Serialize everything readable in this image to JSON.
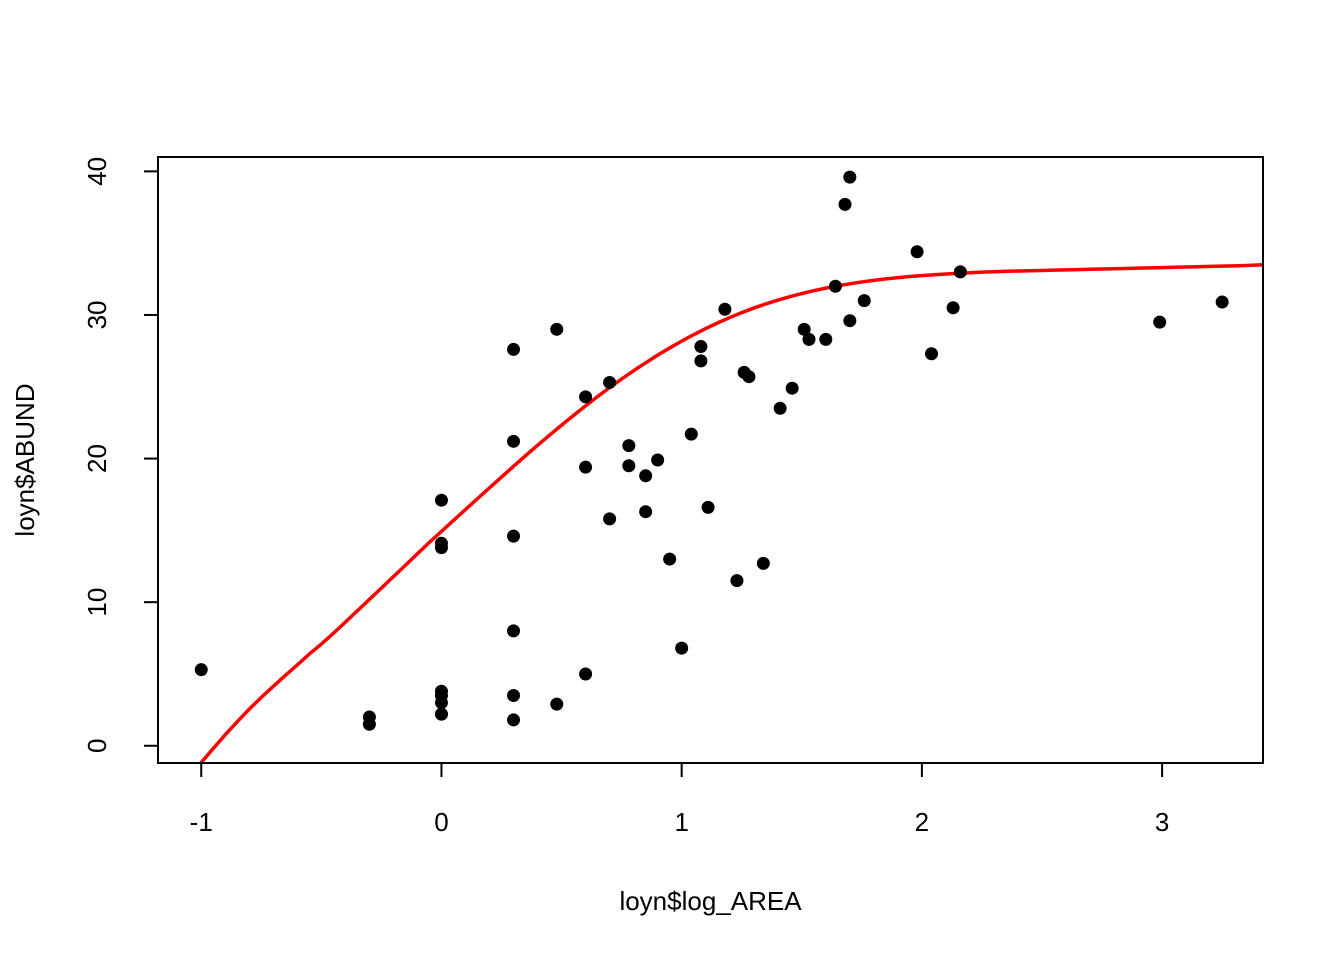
{
  "chart_data": {
    "type": "scatter",
    "title": "",
    "xlabel": "loyn$log_AREA",
    "ylabel": "loyn$ABUND",
    "xlim": [
      -1.18,
      3.42
    ],
    "ylim": [
      -1.2,
      41.0
    ],
    "x_ticks": [
      -1,
      0,
      1,
      2,
      3
    ],
    "x_tick_labels": [
      "-1",
      "0",
      "1",
      "2",
      "3"
    ],
    "y_ticks": [
      0,
      10,
      20,
      30,
      40
    ],
    "y_tick_labels": [
      "0",
      "10",
      "20",
      "30",
      "40"
    ],
    "grid": false,
    "legend": "none",
    "colors": {
      "points": "#000000",
      "curve": "#ff0000",
      "frame": "#000000"
    },
    "series": [
      {
        "type": "scatter",
        "x": [
          -1.0,
          -0.3,
          -0.3,
          0.0,
          0.0,
          0.0,
          0.0,
          0.0,
          0.0,
          0.0,
          0.0,
          0.3,
          0.3,
          0.3,
          0.3,
          0.3,
          0.3,
          0.48,
          0.48,
          0.6,
          0.6,
          0.6,
          0.7,
          0.7,
          0.78,
          0.78,
          0.85,
          0.85,
          0.9,
          0.95,
          1.0,
          1.04,
          1.08,
          1.08,
          1.11,
          1.18,
          1.23,
          1.26,
          1.28,
          1.34,
          1.41,
          1.46,
          1.51,
          1.53,
          1.6,
          1.64,
          1.68,
          1.7,
          1.7,
          1.76,
          1.98,
          2.04,
          2.13,
          2.16,
          2.99,
          3.25
        ],
        "y": [
          5.3,
          2.0,
          1.5,
          17.1,
          14.1,
          13.8,
          3.8,
          3.5,
          3.0,
          2.2,
          2.2,
          27.6,
          21.2,
          14.6,
          8.0,
          3.5,
          1.8,
          29.0,
          2.9,
          24.3,
          19.4,
          5.0,
          25.3,
          15.8,
          20.9,
          19.5,
          18.8,
          16.3,
          19.9,
          13.0,
          6.8,
          21.7,
          27.8,
          26.8,
          16.6,
          30.4,
          11.5,
          26.0,
          25.7,
          12.7,
          23.5,
          24.9,
          29.0,
          28.3,
          28.3,
          32.0,
          37.7,
          39.6,
          29.6,
          31.0,
          34.4,
          27.3,
          30.5,
          33.0,
          29.5,
          30.9
        ]
      },
      {
        "type": "line",
        "x": [
          -1.0,
          -0.95,
          -0.9,
          -0.85,
          -0.8,
          -0.75,
          -0.7,
          -0.65,
          -0.6,
          -0.55,
          -0.5,
          -0.45,
          -0.4,
          -0.35,
          -0.3,
          -0.25,
          -0.2,
          -0.15,
          -0.1,
          -0.05,
          0.0,
          0.05,
          0.1,
          0.15,
          0.2,
          0.25,
          0.3,
          0.35,
          0.4,
          0.45,
          0.5,
          0.55,
          0.6,
          0.65,
          0.7,
          0.75,
          0.8,
          0.85,
          0.9,
          0.95,
          1.0,
          1.05,
          1.1,
          1.15,
          1.2,
          1.25,
          1.3,
          1.35,
          1.4,
          1.45,
          1.5,
          1.55,
          1.6,
          1.65,
          1.7,
          1.75,
          1.8,
          1.85,
          1.9,
          1.95,
          2.0,
          2.05,
          2.1,
          2.15,
          2.2,
          2.25,
          2.3,
          2.35,
          2.4,
          2.45,
          2.5,
          2.55,
          2.6,
          2.65,
          2.7,
          2.75,
          2.8,
          2.85,
          2.9,
          2.95,
          3.0,
          3.05,
          3.1,
          3.15,
          3.2,
          3.25,
          3.3,
          3.35,
          3.42
        ],
        "y": [
          -1.17,
          -0.19,
          0.77,
          1.68,
          2.55,
          3.37,
          4.14,
          4.9,
          5.63,
          6.39,
          7.08,
          7.83,
          8.61,
          9.4,
          10.19,
          10.98,
          11.78,
          12.57,
          13.37,
          14.17,
          14.93,
          15.69,
          16.45,
          17.21,
          17.96,
          18.71,
          19.46,
          20.2,
          20.92,
          21.63,
          22.33,
          23.01,
          23.67,
          24.32,
          24.94,
          25.54,
          26.12,
          26.67,
          27.2,
          27.7,
          28.18,
          28.63,
          29.05,
          29.45,
          29.82,
          30.16,
          30.48,
          30.77,
          31.03,
          31.27,
          31.49,
          31.69,
          31.87,
          32.03,
          32.17,
          32.3,
          32.41,
          32.51,
          32.6,
          32.68,
          32.74,
          32.8,
          32.85,
          32.9,
          32.94,
          32.98,
          33.01,
          33.04,
          33.06,
          33.08,
          33.1,
          33.12,
          33.14,
          33.16,
          33.18,
          33.2,
          33.22,
          33.24,
          33.26,
          33.28,
          33.3,
          33.32,
          33.34,
          33.36,
          33.38,
          33.4,
          33.42,
          33.44,
          33.5
        ]
      }
    ]
  }
}
